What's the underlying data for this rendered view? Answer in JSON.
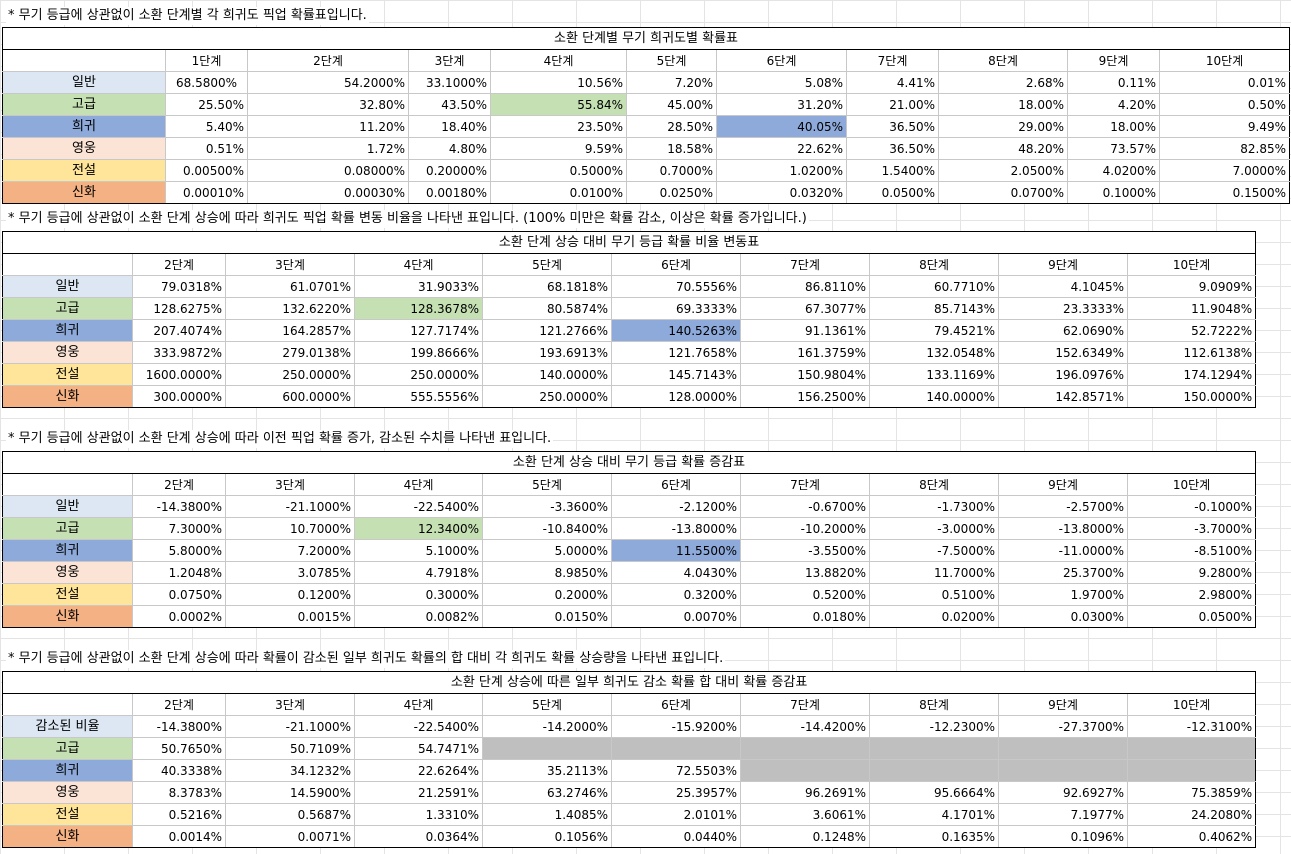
{
  "tables": [
    {
      "note": "* 무기 등급에 상관없이 소환 단계별 각 희귀도 픽업 확률표입니다.",
      "title": "소환 단계별 무기 희귀도별 확률표",
      "columns": [
        "1단계",
        "2단계",
        "3단계",
        "4단계",
        "5단계",
        "6단계",
        "7단계",
        "8단계",
        "9단계",
        "10단계"
      ],
      "rows": [
        {
          "label": "일반",
          "values": [
            "68.5800%",
            "54.2000%",
            "33.1000%",
            "10.56%",
            "7.20%",
            "5.08%",
            "4.41%",
            "2.68%",
            "0.11%",
            "0.01%"
          ]
        },
        {
          "label": "고급",
          "values": [
            "25.50%",
            "32.80%",
            "43.50%",
            "55.84%",
            "45.00%",
            "31.20%",
            "21.00%",
            "18.00%",
            "4.20%",
            "0.50%"
          ]
        },
        {
          "label": "희귀",
          "values": [
            "5.40%",
            "11.20%",
            "18.40%",
            "23.50%",
            "28.50%",
            "40.05%",
            "36.50%",
            "29.00%",
            "18.00%",
            "9.49%"
          ]
        },
        {
          "label": "영웅",
          "values": [
            "0.51%",
            "1.72%",
            "4.80%",
            "9.59%",
            "18.58%",
            "22.62%",
            "36.50%",
            "48.20%",
            "73.57%",
            "82.85%"
          ]
        },
        {
          "label": "전설",
          "values": [
            "0.00500%",
            "0.08000%",
            "0.20000%",
            "0.5000%",
            "0.7000%",
            "1.0200%",
            "1.5400%",
            "2.0500%",
            "4.0200%",
            "7.0000%"
          ]
        },
        {
          "label": "신화",
          "values": [
            "0.00010%",
            "0.00030%",
            "0.00180%",
            "0.0100%",
            "0.0250%",
            "0.0320%",
            "0.0500%",
            "0.0700%",
            "0.1000%",
            "0.1500%"
          ]
        }
      ]
    },
    {
      "note": "* 무기 등급에 상관없이 소환 단계 상승에 따라 희귀도 픽업 확률 변동 비율을 나타낸 표입니다. (100% 미만은 확률 감소, 이상은 확률 증가입니다.)",
      "title": "소환 단계 상승 대비 무기 등급 확률 비율 변동표",
      "columns": [
        "2단계",
        "3단계",
        "4단계",
        "5단계",
        "6단계",
        "7단계",
        "8단계",
        "9단계",
        "10단계"
      ],
      "rows": [
        {
          "label": "일반",
          "values": [
            "79.0318%",
            "61.0701%",
            "31.9033%",
            "68.1818%",
            "70.5556%",
            "86.8110%",
            "60.7710%",
            "4.1045%",
            "9.0909%"
          ]
        },
        {
          "label": "고급",
          "values": [
            "128.6275%",
            "132.6220%",
            "128.3678%",
            "80.5874%",
            "69.3333%",
            "67.3077%",
            "85.7143%",
            "23.3333%",
            "11.9048%"
          ]
        },
        {
          "label": "희귀",
          "values": [
            "207.4074%",
            "164.2857%",
            "127.7174%",
            "121.2766%",
            "140.5263%",
            "91.1361%",
            "79.4521%",
            "62.0690%",
            "52.7222%"
          ]
        },
        {
          "label": "영웅",
          "values": [
            "333.9872%",
            "279.0138%",
            "199.8666%",
            "193.6913%",
            "121.7658%",
            "161.3759%",
            "132.0548%",
            "152.6349%",
            "112.6138%"
          ]
        },
        {
          "label": "전설",
          "values": [
            "1600.0000%",
            "250.0000%",
            "250.0000%",
            "140.0000%",
            "145.7143%",
            "150.9804%",
            "133.1169%",
            "196.0976%",
            "174.1294%"
          ]
        },
        {
          "label": "신화",
          "values": [
            "300.0000%",
            "600.0000%",
            "555.5556%",
            "250.0000%",
            "128.0000%",
            "156.2500%",
            "140.0000%",
            "142.8571%",
            "150.0000%"
          ]
        }
      ]
    },
    {
      "note": "* 무기 등급에 상관없이 소환 단계 상승에 따라 이전 픽업 확률 증가, 감소된 수치를 나타낸 표입니다.",
      "title": "소환 단계 상승 대비 무기 등급 확률 증감표",
      "columns": [
        "2단계",
        "3단계",
        "4단계",
        "5단계",
        "6단계",
        "7단계",
        "8단계",
        "9단계",
        "10단계"
      ],
      "rows": [
        {
          "label": "일반",
          "values": [
            "-14.3800%",
            "-21.1000%",
            "-22.5400%",
            "-3.3600%",
            "-2.1200%",
            "-0.6700%",
            "-1.7300%",
            "-2.5700%",
            "-0.1000%"
          ]
        },
        {
          "label": "고급",
          "values": [
            "7.3000%",
            "10.7000%",
            "12.3400%",
            "-10.8400%",
            "-13.8000%",
            "-10.2000%",
            "-3.0000%",
            "-13.8000%",
            "-3.7000%"
          ]
        },
        {
          "label": "희귀",
          "values": [
            "5.8000%",
            "7.2000%",
            "5.1000%",
            "5.0000%",
            "11.5500%",
            "-3.5500%",
            "-7.5000%",
            "-11.0000%",
            "-8.5100%"
          ]
        },
        {
          "label": "영웅",
          "values": [
            "1.2048%",
            "3.0785%",
            "4.7918%",
            "8.9850%",
            "4.0430%",
            "13.8820%",
            "11.7000%",
            "25.3700%",
            "9.2800%"
          ]
        },
        {
          "label": "전설",
          "values": [
            "0.0750%",
            "0.1200%",
            "0.3000%",
            "0.2000%",
            "0.3200%",
            "0.5200%",
            "0.5100%",
            "1.9700%",
            "2.9800%"
          ]
        },
        {
          "label": "신화",
          "values": [
            "0.0002%",
            "0.0015%",
            "0.0082%",
            "0.0150%",
            "0.0070%",
            "0.0180%",
            "0.0200%",
            "0.0300%",
            "0.0500%"
          ]
        }
      ]
    },
    {
      "note": "* 무기 등급에 상관없이 소환 단계 상승에 따라 확률이 감소된 일부 희귀도 확률의 합 대비 각 희귀도 확률 상승량을 나타낸 표입니다.",
      "title": "소환 단계 상승에 따른 일부 희귀도 감소 확률 합  대비 확률 증감표",
      "columns": [
        "2단계",
        "3단계",
        "4단계",
        "5단계",
        "6단계",
        "7단계",
        "8단계",
        "9단계",
        "10단계"
      ],
      "rows": [
        {
          "label": "감소된 비율",
          "values": [
            "-14.3800%",
            "-21.1000%",
            "-22.5400%",
            "-14.2000%",
            "-15.9200%",
            "-14.4200%",
            "-12.2300%",
            "-27.3700%",
            "-12.3100%"
          ]
        },
        {
          "label": "고급",
          "values": [
            "50.7650%",
            "50.7109%",
            "54.7471%",
            "",
            "",
            "",
            "",
            "",
            ""
          ]
        },
        {
          "label": "희귀",
          "values": [
            "40.3338%",
            "34.1232%",
            "22.6264%",
            "35.2113%",
            "72.5503%",
            "",
            "",
            "",
            ""
          ]
        },
        {
          "label": "영웅",
          "values": [
            "8.3783%",
            "14.5900%",
            "21.2591%",
            "63.2746%",
            "25.3957%",
            "96.2691%",
            "95.6664%",
            "92.6927%",
            "75.3859%"
          ]
        },
        {
          "label": "전설",
          "values": [
            "0.5216%",
            "0.5687%",
            "1.3310%",
            "1.4085%",
            "2.0101%",
            "3.6061%",
            "4.1701%",
            "7.1977%",
            "24.2080%"
          ]
        },
        {
          "label": "신화",
          "values": [
            "0.0014%",
            "0.0071%",
            "0.0364%",
            "0.1056%",
            "0.0440%",
            "0.1248%",
            "0.1635%",
            "0.1096%",
            "0.4062%"
          ]
        }
      ]
    }
  ]
}
